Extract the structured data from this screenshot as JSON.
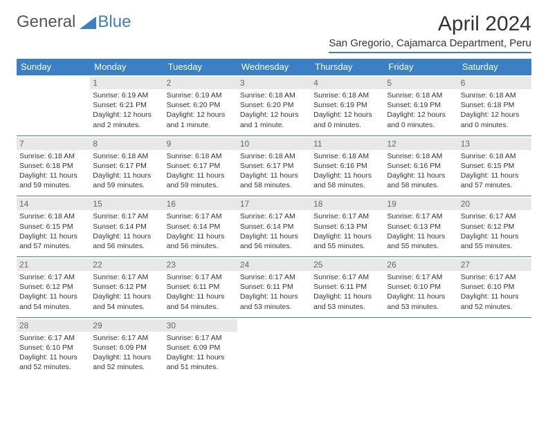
{
  "logo": {
    "part1": "General",
    "part2": "Blue"
  },
  "title": "April 2024",
  "location": "San Gregorio, Cajamarca Department, Peru",
  "colors": {
    "accent": "#3b7fc4",
    "dayheader_bg": "#e8e8e8"
  },
  "weekdays": [
    "Sunday",
    "Monday",
    "Tuesday",
    "Wednesday",
    "Thursday",
    "Friday",
    "Saturday"
  ],
  "days": {
    "1": {
      "sunrise": "6:19 AM",
      "sunset": "6:21 PM",
      "daylight": "12 hours and 2 minutes."
    },
    "2": {
      "sunrise": "6:19 AM",
      "sunset": "6:20 PM",
      "daylight": "12 hours and 1 minute."
    },
    "3": {
      "sunrise": "6:18 AM",
      "sunset": "6:20 PM",
      "daylight": "12 hours and 1 minute."
    },
    "4": {
      "sunrise": "6:18 AM",
      "sunset": "6:19 PM",
      "daylight": "12 hours and 0 minutes."
    },
    "5": {
      "sunrise": "6:18 AM",
      "sunset": "6:19 PM",
      "daylight": "12 hours and 0 minutes."
    },
    "6": {
      "sunrise": "6:18 AM",
      "sunset": "6:18 PM",
      "daylight": "12 hours and 0 minutes."
    },
    "7": {
      "sunrise": "6:18 AM",
      "sunset": "6:18 PM",
      "daylight": "11 hours and 59 minutes."
    },
    "8": {
      "sunrise": "6:18 AM",
      "sunset": "6:17 PM",
      "daylight": "11 hours and 59 minutes."
    },
    "9": {
      "sunrise": "6:18 AM",
      "sunset": "6:17 PM",
      "daylight": "11 hours and 59 minutes."
    },
    "10": {
      "sunrise": "6:18 AM",
      "sunset": "6:17 PM",
      "daylight": "11 hours and 58 minutes."
    },
    "11": {
      "sunrise": "6:18 AM",
      "sunset": "6:16 PM",
      "daylight": "11 hours and 58 minutes."
    },
    "12": {
      "sunrise": "6:18 AM",
      "sunset": "6:16 PM",
      "daylight": "11 hours and 58 minutes."
    },
    "13": {
      "sunrise": "6:18 AM",
      "sunset": "6:15 PM",
      "daylight": "11 hours and 57 minutes."
    },
    "14": {
      "sunrise": "6:18 AM",
      "sunset": "6:15 PM",
      "daylight": "11 hours and 57 minutes."
    },
    "15": {
      "sunrise": "6:17 AM",
      "sunset": "6:14 PM",
      "daylight": "11 hours and 56 minutes."
    },
    "16": {
      "sunrise": "6:17 AM",
      "sunset": "6:14 PM",
      "daylight": "11 hours and 56 minutes."
    },
    "17": {
      "sunrise": "6:17 AM",
      "sunset": "6:14 PM",
      "daylight": "11 hours and 56 minutes."
    },
    "18": {
      "sunrise": "6:17 AM",
      "sunset": "6:13 PM",
      "daylight": "11 hours and 55 minutes."
    },
    "19": {
      "sunrise": "6:17 AM",
      "sunset": "6:13 PM",
      "daylight": "11 hours and 55 minutes."
    },
    "20": {
      "sunrise": "6:17 AM",
      "sunset": "6:12 PM",
      "daylight": "11 hours and 55 minutes."
    },
    "21": {
      "sunrise": "6:17 AM",
      "sunset": "6:12 PM",
      "daylight": "11 hours and 54 minutes."
    },
    "22": {
      "sunrise": "6:17 AM",
      "sunset": "6:12 PM",
      "daylight": "11 hours and 54 minutes."
    },
    "23": {
      "sunrise": "6:17 AM",
      "sunset": "6:11 PM",
      "daylight": "11 hours and 54 minutes."
    },
    "24": {
      "sunrise": "6:17 AM",
      "sunset": "6:11 PM",
      "daylight": "11 hours and 53 minutes."
    },
    "25": {
      "sunrise": "6:17 AM",
      "sunset": "6:11 PM",
      "daylight": "11 hours and 53 minutes."
    },
    "26": {
      "sunrise": "6:17 AM",
      "sunset": "6:10 PM",
      "daylight": "11 hours and 53 minutes."
    },
    "27": {
      "sunrise": "6:17 AM",
      "sunset": "6:10 PM",
      "daylight": "11 hours and 52 minutes."
    },
    "28": {
      "sunrise": "6:17 AM",
      "sunset": "6:10 PM",
      "daylight": "11 hours and 52 minutes."
    },
    "29": {
      "sunrise": "6:17 AM",
      "sunset": "6:09 PM",
      "daylight": "11 hours and 52 minutes."
    },
    "30": {
      "sunrise": "6:17 AM",
      "sunset": "6:09 PM",
      "daylight": "11 hours and 51 minutes."
    }
  },
  "labels": {
    "sunrise": "Sunrise: ",
    "sunset": "Sunset: ",
    "daylight": "Daylight: "
  },
  "grid": [
    [
      null,
      1,
      2,
      3,
      4,
      5,
      6
    ],
    [
      7,
      8,
      9,
      10,
      11,
      12,
      13
    ],
    [
      14,
      15,
      16,
      17,
      18,
      19,
      20
    ],
    [
      21,
      22,
      23,
      24,
      25,
      26,
      27
    ],
    [
      28,
      29,
      30,
      null,
      null,
      null,
      null
    ]
  ]
}
